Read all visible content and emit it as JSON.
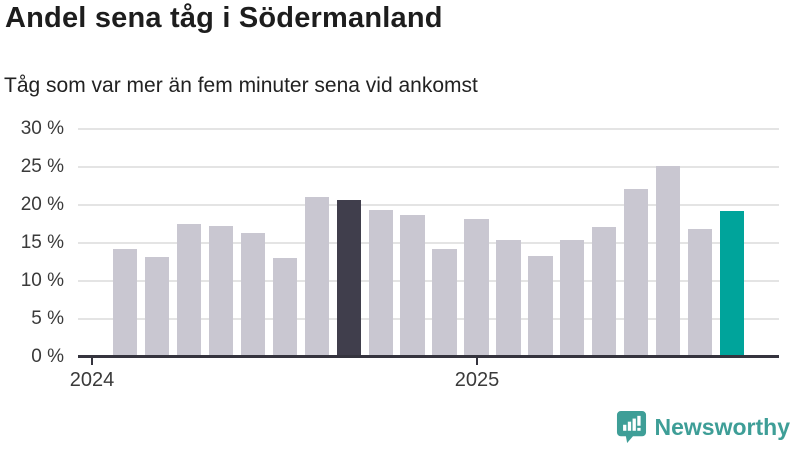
{
  "chart_data": {
    "type": "bar",
    "title": "Andel sena tåg i Södermanland",
    "subtitle": "Tåg som var mer än fem minuter sena vid ankomst",
    "unit": "%",
    "values": [
      14.2,
      13.2,
      17.5,
      17.2,
      16.3,
      13.0,
      21.0,
      20.6,
      19.3,
      18.7,
      14.2,
      18.1,
      15.4,
      13.3,
      15.4,
      17.1,
      22.1,
      25.1,
      16.8,
      19.2
    ],
    "highlight_dark_index": 7,
    "highlight_teal_index": 19,
    "ylim": [
      0,
      30
    ],
    "y_tick_labels": [
      "0 %",
      "5 %",
      "10 %",
      "15 %",
      "20 %",
      "25 %",
      "30 %"
    ],
    "x_tick_labels": [
      "2024",
      "2025"
    ],
    "grid": "horizontal",
    "legend": "none"
  },
  "colors": {
    "bar_default": "#c9c7d1",
    "bar_dark_highlight": "#403e4c",
    "bar_teal_highlight": "#00a49b",
    "gridline": "#e4e4e4",
    "axis_line": "#35343e",
    "brand_teal": "#3e9e97"
  },
  "branding": {
    "logo_text": "Newsworthy"
  }
}
